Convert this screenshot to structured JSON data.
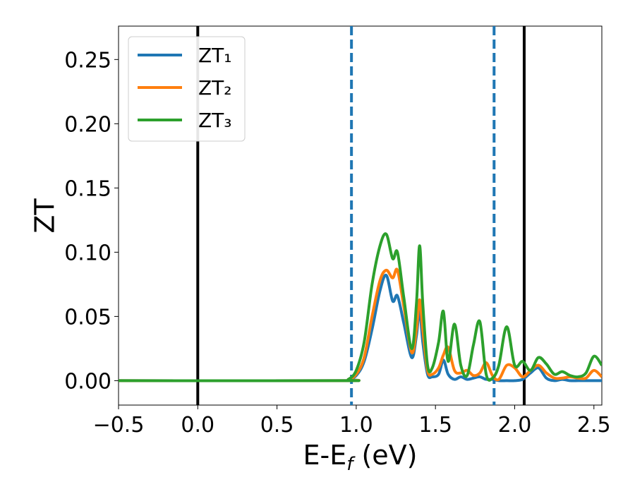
{
  "chart_data": {
    "type": "line",
    "title": "",
    "xlabel": "E-E_f (eV)",
    "ylabel": "ZT",
    "xlim": [
      -0.5,
      2.55
    ],
    "ylim": [
      -0.019,
      0.276
    ],
    "grid": false,
    "legend_position": "top-left",
    "x_ticks": [
      -0.5,
      0.0,
      0.5,
      1.0,
      1.5,
      2.0,
      2.5
    ],
    "x_tick_labels": [
      "−0.5",
      "0.0",
      "0.5",
      "1.0",
      "1.5",
      "2.0",
      "2.5"
    ],
    "y_ticks": [
      0.0,
      0.05,
      0.1,
      0.15,
      0.2,
      0.25
    ],
    "y_tick_labels": [
      "0.00",
      "0.05",
      "0.10",
      "0.15",
      "0.20",
      "0.25"
    ],
    "vertical_lines": [
      {
        "x": 0.0,
        "color": "#000000",
        "style": "solid"
      },
      {
        "x": 2.06,
        "color": "#000000",
        "style": "solid"
      },
      {
        "x": 0.97,
        "color": "#1f77b4",
        "style": "dashed"
      },
      {
        "x": 1.87,
        "color": "#1f77b4",
        "style": "dashed"
      }
    ],
    "series": [
      {
        "name": "ZT₁",
        "color": "#1f77b4",
        "x": [
          -0.5,
          0.9,
          0.95,
          1.0,
          1.05,
          1.1,
          1.15,
          1.19,
          1.23,
          1.26,
          1.3,
          1.35,
          1.38,
          1.4,
          1.42,
          1.45,
          1.48,
          1.52,
          1.55,
          1.58,
          1.62,
          1.66,
          1.7,
          1.74,
          1.78,
          1.82,
          1.86,
          1.9,
          1.95,
          2.0,
          2.05,
          2.1,
          2.15,
          2.2,
          2.25,
          2.3,
          2.35,
          2.4,
          2.45,
          2.5,
          2.55
        ],
        "y": [
          0.0,
          0.0,
          0.001,
          0.004,
          0.015,
          0.04,
          0.07,
          0.082,
          0.062,
          0.066,
          0.045,
          0.018,
          0.035,
          0.055,
          0.03,
          0.005,
          0.003,
          0.005,
          0.016,
          0.005,
          0.001,
          0.003,
          0.001,
          0.002,
          0.003,
          0.001,
          0.001,
          0.0,
          0.0,
          0.0,
          0.001,
          0.006,
          0.01,
          0.002,
          0.0,
          0.001,
          0.0,
          0.0,
          0.0,
          0.0,
          0.0
        ]
      },
      {
        "name": "ZT₂",
        "color": "#ff7f0e",
        "x": [
          -0.5,
          0.9,
          0.95,
          1.0,
          1.05,
          1.1,
          1.15,
          1.19,
          1.23,
          1.26,
          1.3,
          1.35,
          1.38,
          1.4,
          1.42,
          1.45,
          1.48,
          1.52,
          1.55,
          1.58,
          1.62,
          1.66,
          1.7,
          1.74,
          1.78,
          1.82,
          1.86,
          1.9,
          1.95,
          2.0,
          2.05,
          2.1,
          2.15,
          2.2,
          2.25,
          2.3,
          2.35,
          2.4,
          2.45,
          2.5,
          2.55
        ],
        "y": [
          0.0,
          0.0,
          0.001,
          0.005,
          0.018,
          0.05,
          0.078,
          0.086,
          0.08,
          0.086,
          0.058,
          0.022,
          0.04,
          0.063,
          0.04,
          0.008,
          0.005,
          0.01,
          0.02,
          0.026,
          0.008,
          0.006,
          0.008,
          0.004,
          0.006,
          0.014,
          0.004,
          0.001,
          0.012,
          0.01,
          0.003,
          0.008,
          0.012,
          0.006,
          0.002,
          0.002,
          0.003,
          0.002,
          0.002,
          0.008,
          0.003
        ]
      },
      {
        "name": "ZT₃",
        "color": "#2ca02c",
        "x": [
          -0.5,
          0.9,
          0.95,
          1.0,
          1.05,
          1.1,
          1.15,
          1.19,
          1.23,
          1.26,
          1.3,
          1.35,
          1.38,
          1.4,
          1.42,
          1.45,
          1.48,
          1.52,
          1.55,
          1.58,
          1.62,
          1.66,
          1.7,
          1.74,
          1.78,
          1.82,
          1.86,
          1.9,
          1.95,
          2.0,
          2.05,
          2.1,
          2.15,
          2.2,
          2.25,
          2.3,
          2.35,
          2.4,
          2.45,
          2.5,
          2.55
        ],
        "y": [
          0.0,
          0.0,
          0.001,
          0.008,
          0.03,
          0.075,
          0.105,
          0.114,
          0.095,
          0.1,
          0.065,
          0.025,
          0.06,
          0.105,
          0.06,
          0.012,
          0.01,
          0.03,
          0.054,
          0.015,
          0.044,
          0.012,
          0.004,
          0.028,
          0.046,
          0.005,
          0.002,
          0.012,
          0.042,
          0.012,
          0.015,
          0.008,
          0.018,
          0.013,
          0.005,
          0.007,
          0.004,
          0.003,
          0.006,
          0.019,
          0.012
        ]
      }
    ]
  }
}
